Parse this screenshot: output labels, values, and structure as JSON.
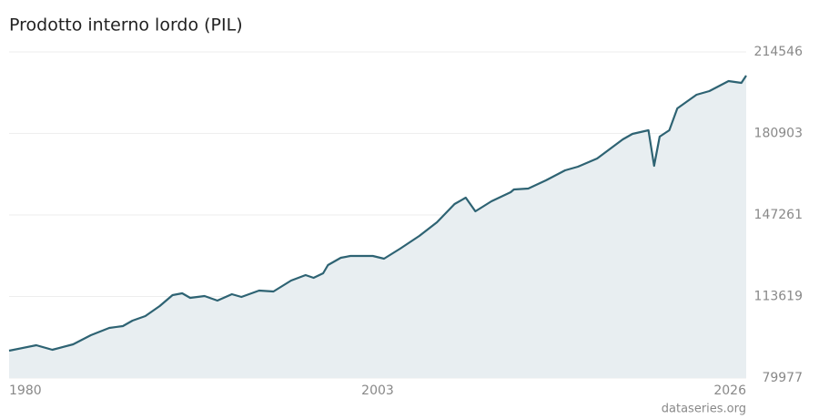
{
  "chart_data": {
    "type": "area",
    "title": "Prodotto interno lordo (PIL)",
    "source": "dataseries.org",
    "series": [
      {
        "name": "PIL",
        "color": "#2e6373",
        "fill": "#e8eef1",
        "x": [
          1980,
          1981.7,
          1982.7,
          1984,
          1985.1,
          1986.25,
          1987.1,
          1987.7,
          1988.5,
          1989.4,
          1990.2,
          1990.8,
          1991.3,
          1992.2,
          1993,
          1993.9,
          1994.5,
          1995.6,
          1996.5,
          1997.6,
          1998.5,
          1999,
          1999.6,
          1999.9,
          2000.7,
          2001.3,
          2002.1,
          2002.7,
          2003.4,
          2004.4,
          2005.6,
          2006.7,
          2007.8,
          2008.5,
          2009.1,
          2010.1,
          2011.3,
          2011.5,
          2012.4,
          2013.5,
          2014.7,
          2015.5,
          2016.7,
          2018.3,
          2018.9,
          2019.9,
          2020.25,
          2020.6,
          2021.2,
          2021.7,
          2022.9,
          2023.7,
          2024.9,
          2025.7,
          2026
        ],
        "values": [
          91254,
          93510,
          91630,
          93886,
          97645,
          100652,
          101404,
          103659,
          105539,
          109674,
          114184,
          114936,
          113057,
          113809,
          111929,
          114561,
          113433,
          116064,
          115688,
          120198,
          122454,
          121326,
          123206,
          126589,
          129596,
          130348,
          130348,
          130348,
          129220,
          133355,
          138617,
          144256,
          151774,
          154405,
          148767,
          152901,
          156660,
          157788,
          158164,
          161547,
          165682,
          167186,
          170569,
          178463,
          180718,
          182222,
          167562,
          179590,
          182222,
          191243,
          196882,
          198385,
          202520,
          201768,
          204775
        ]
      }
    ],
    "xlim": [
      1980,
      2026
    ],
    "xticks": [
      1980,
      2003,
      2026
    ],
    "ylim": [
      79977,
      214546
    ],
    "yticks": [
      79977,
      113619,
      147261,
      180903,
      214546
    ],
    "grid": true
  }
}
